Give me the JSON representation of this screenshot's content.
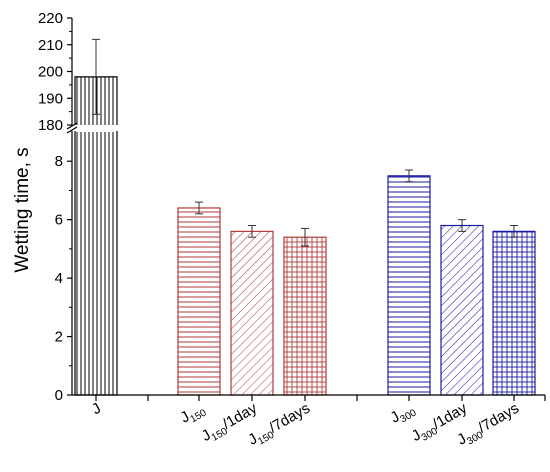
{
  "chart_data": {
    "type": "bar",
    "ylabel": "Wetting time, s",
    "xlabel": "",
    "y_axis_break": {
      "lower_range": [
        0,
        9
      ],
      "upper_range": [
        180,
        220
      ]
    },
    "lower_ticks": [
      "0",
      "2",
      "4",
      "6",
      "8"
    ],
    "upper_ticks": [
      "180",
      "190",
      "200",
      "210",
      "220"
    ],
    "categories": [
      {
        "base": "J",
        "sub": "",
        "suffix": ""
      },
      {
        "base": "J",
        "sub": "150",
        "suffix": ""
      },
      {
        "base": "J",
        "sub": "150",
        "suffix": "/1day"
      },
      {
        "base": "J",
        "sub": "150",
        "suffix": "/7days"
      },
      {
        "base": "J",
        "sub": "300",
        "suffix": ""
      },
      {
        "base": "J",
        "sub": "300",
        "suffix": "/1day"
      },
      {
        "base": "J",
        "sub": "300",
        "suffix": "/7days"
      }
    ],
    "values": [
      198,
      6.4,
      5.6,
      5.4,
      7.5,
      5.8,
      5.6
    ],
    "errors": [
      14,
      0.2,
      0.2,
      0.3,
      0.2,
      0.2,
      0.2
    ],
    "colors": [
      "#000000",
      "#b03a3a",
      "#b03a3a",
      "#b03a3a",
      "#1a1aa6",
      "#1a1aa6",
      "#1a1aa6"
    ],
    "patterns": [
      "vertical",
      "horizontal",
      "diagonal",
      "grid",
      "horizontal",
      "diagonal",
      "grid"
    ],
    "grid": false,
    "legend": "none"
  }
}
